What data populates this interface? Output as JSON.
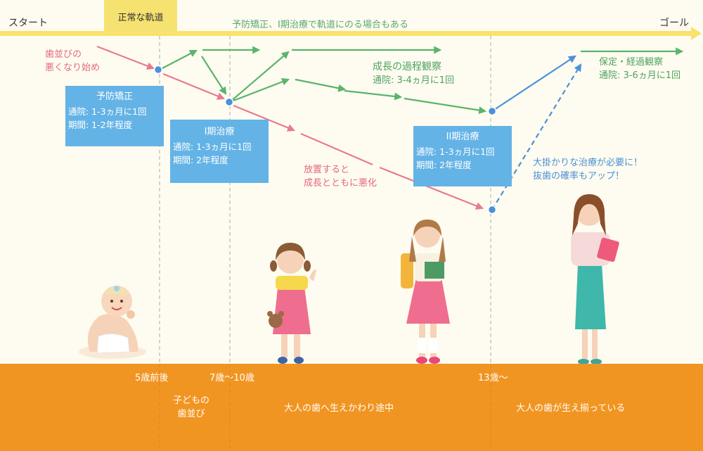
{
  "timeline": {
    "start": "スタート",
    "goal": "ゴール",
    "normal_track": "正常な軌道",
    "top_note": "予防矯正、I期治療で軌道にのる場合もある"
  },
  "annotations": {
    "worsening_start": [
      "歯並びの",
      "悪くなり始め"
    ],
    "neglect": [
      "放置すると",
      "成長とともに悪化"
    ],
    "growth_observation": [
      "成長の過程観察",
      "通院: 3-4ヵ月に1回"
    ],
    "retention": [
      "保定・経過観察",
      "通院: 3-6ヵ月に1回"
    ],
    "major_treatment": [
      "大掛かりな治療が必要に！",
      "抜歯の確率もアップ！"
    ]
  },
  "boxes": {
    "preventive": {
      "title": "予防矯正",
      "visits": "通院: 1-3ヵ月に1回",
      "period": "期間: 1-2年程度"
    },
    "phase1": {
      "title": "I期治療",
      "visits": "通院: 1-3ヵ月に1回",
      "period": "期間: 2年程度"
    },
    "phase2": {
      "title": "II期治療",
      "visits": "通院: 1-3ヵ月に1回",
      "period": "期間: 2年程度"
    }
  },
  "ages": {
    "age5": "5歳前後",
    "age7_10": "7歳〜10歳",
    "age13": "13歳〜"
  },
  "stages": {
    "child_teeth": [
      "子どもの",
      "歯並び"
    ],
    "mixed": "大人の歯へ生えかわり途中",
    "adult": "大人の歯が生え揃っている"
  },
  "colors": {
    "green": "#5ab46c",
    "pink": "#ea7a8e",
    "blue": "#4c90da",
    "box": "#64b3e6",
    "band": "#f19522",
    "timeline": "#f7e36b"
  }
}
